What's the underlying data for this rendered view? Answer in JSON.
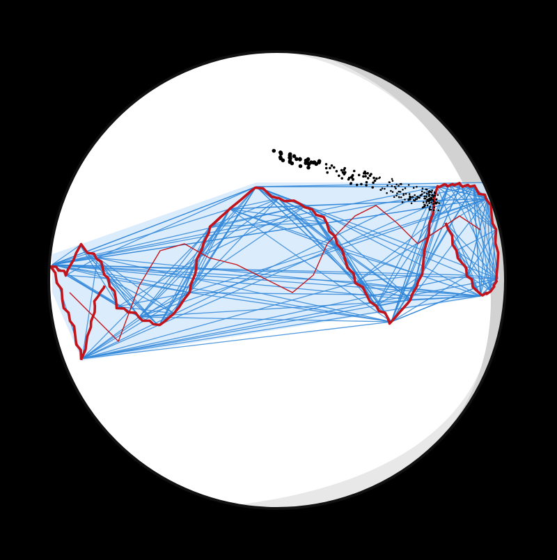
{
  "diagram": {
    "colors": {
      "background": "#000000",
      "sphere_fill": "#ffffff",
      "sphere_shade_light": "#e8e8e8",
      "sphere_shade_dark": "#d2d2d2",
      "sphere_outline": "#111111",
      "band_fill": "#cfe6fb",
      "hull_lines": "#2f86d8",
      "curve": "#c3141b",
      "thin_curve": "#c3141b",
      "points": "#000000"
    },
    "elements": [
      "sphere",
      "shading-crescent",
      "triangulated-band",
      "wavy-curve",
      "trailing-curve",
      "point-cloud"
    ]
  }
}
